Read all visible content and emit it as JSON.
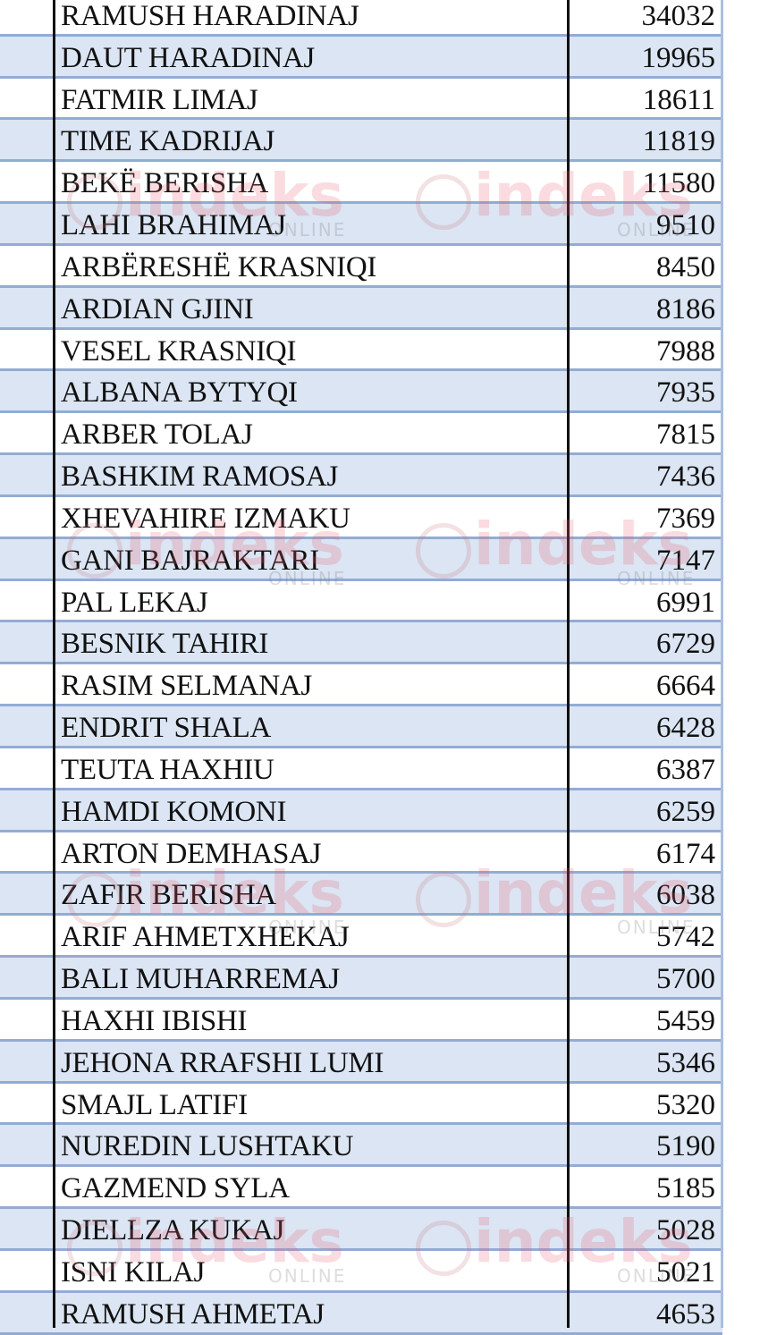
{
  "watermark": {
    "brand": "indeks",
    "tagline": "ONLINE",
    "color": "#e65a6e"
  },
  "colors": {
    "row_alt": "#dbe5f3",
    "row_border": "#93acd3",
    "column_rule": "#111111"
  },
  "rows": [
    {
      "name": "RAMUSH HARADINAJ",
      "votes": "34032"
    },
    {
      "name": "DAUT HARADINAJ",
      "votes": "19965"
    },
    {
      "name": "FATMIR LIMAJ",
      "votes": "18611"
    },
    {
      "name": "TIME KADRIJAJ",
      "votes": "11819"
    },
    {
      "name": "BEKË BERISHA",
      "votes": "11580"
    },
    {
      "name": "LAHI BRAHIMAJ",
      "votes": "9510"
    },
    {
      "name": "ARBËRESHË KRASNIQI",
      "votes": "8450"
    },
    {
      "name": "ARDIAN GJINI",
      "votes": "8186"
    },
    {
      "name": "VESEL KRASNIQI",
      "votes": "7988"
    },
    {
      "name": "ALBANA BYTYQI",
      "votes": "7935"
    },
    {
      "name": "ARBER TOLAJ",
      "votes": "7815"
    },
    {
      "name": "BASHKIM RAMOSAJ",
      "votes": "7436"
    },
    {
      "name": "XHEVAHIRE IZMAKU",
      "votes": "7369"
    },
    {
      "name": "GANI BAJRAKTARI",
      "votes": "7147"
    },
    {
      "name": "PAL LEKAJ",
      "votes": "6991"
    },
    {
      "name": "BESNIK TAHIRI",
      "votes": "6729"
    },
    {
      "name": "RASIM SELMANAJ",
      "votes": "6664"
    },
    {
      "name": "ENDRIT SHALA",
      "votes": "6428"
    },
    {
      "name": "TEUTA HAXHIU",
      "votes": "6387"
    },
    {
      "name": "HAMDI KOMONI",
      "votes": "6259"
    },
    {
      "name": "ARTON DEMHASAJ",
      "votes": "6174"
    },
    {
      "name": "ZAFIR BERISHA",
      "votes": "6038"
    },
    {
      "name": "ARIF AHMETXHEKAJ",
      "votes": "5742"
    },
    {
      "name": "BALI MUHARREMAJ",
      "votes": "5700"
    },
    {
      "name": "HAXHI IBISHI",
      "votes": "5459"
    },
    {
      "name": "JEHONA RRAFSHI LUMI",
      "votes": "5346"
    },
    {
      "name": "SMAJL LATIFI",
      "votes": "5320"
    },
    {
      "name": "NUREDIN LUSHTAKU",
      "votes": "5190"
    },
    {
      "name": "GAZMEND SYLA",
      "votes": "5185"
    },
    {
      "name": "DIELLZA KUKAJ",
      "votes": "5028"
    },
    {
      "name": "ISNI KILAJ",
      "votes": "5021"
    },
    {
      "name": "RAMUSH AHMETAJ",
      "votes": "4653"
    }
  ]
}
